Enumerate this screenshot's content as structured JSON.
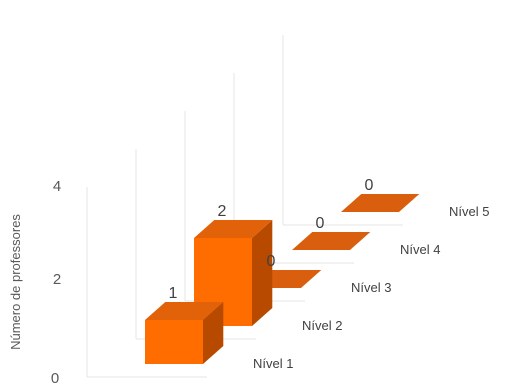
{
  "chart_data": {
    "type": "bar",
    "style": "3d-column",
    "categories": [
      "Nível 1",
      "Nível 2",
      "Nível 3",
      "Nível 4",
      "Nível 5"
    ],
    "values": [
      1,
      2,
      0,
      0,
      0
    ],
    "data_labels": [
      "1",
      "2",
      "0",
      "0",
      "0"
    ],
    "ylabel": "Número de professores",
    "ylim": [
      0,
      4
    ],
    "yticks": [
      "0",
      "2",
      "4"
    ],
    "grid": true,
    "colors": {
      "front": "#FF6D00",
      "side": "#B84A00",
      "top": "#E2620A",
      "flat": "#D95F0E",
      "grid": "#E6E6E6"
    }
  }
}
